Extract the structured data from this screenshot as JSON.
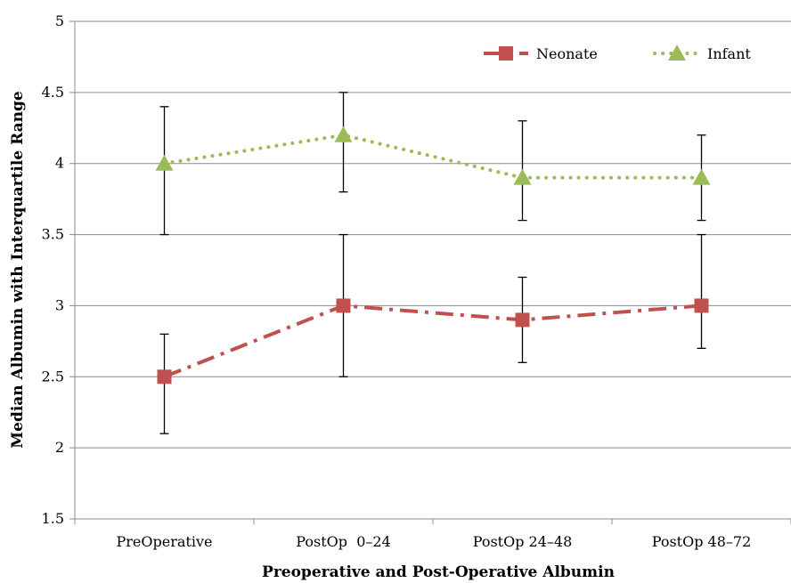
{
  "chart_data": {
    "type": "line",
    "title": "",
    "xlabel": "Preoperative and  Post-Operative  Albumin",
    "ylabel": "Median Albumin with Interquartile Range",
    "categories": [
      "PreOperative",
      "PostOp  0–24",
      "PostOp 24–48",
      "PostOp 48–72"
    ],
    "ylim": [
      1.5,
      5
    ],
    "yticks": [
      1.5,
      2,
      2.5,
      3,
      3.5,
      4,
      4.5,
      5
    ],
    "ytick_labels": [
      "1.5",
      "2",
      "2.5",
      "3",
      "3.5",
      "4",
      "4.5",
      "5"
    ],
    "grid": true,
    "legend_position": "top-right",
    "series": [
      {
        "name": "Neonate",
        "values": [
          2.5,
          3.0,
          2.9,
          3.0
        ],
        "iqr_low": [
          2.1,
          2.5,
          2.6,
          2.7
        ],
        "iqr_high": [
          2.8,
          3.5,
          3.2,
          3.5
        ],
        "color": "#c0504d",
        "marker": "square",
        "line_style": "dash-dot"
      },
      {
        "name": "Infant",
        "values": [
          4.0,
          4.2,
          3.9,
          3.9
        ],
        "iqr_low": [
          3.5,
          3.8,
          3.6,
          3.6
        ],
        "iqr_high": [
          4.4,
          4.5,
          4.3,
          4.2
        ],
        "color": "#9bbb59",
        "marker": "triangle",
        "line_style": "dotted"
      }
    ]
  }
}
